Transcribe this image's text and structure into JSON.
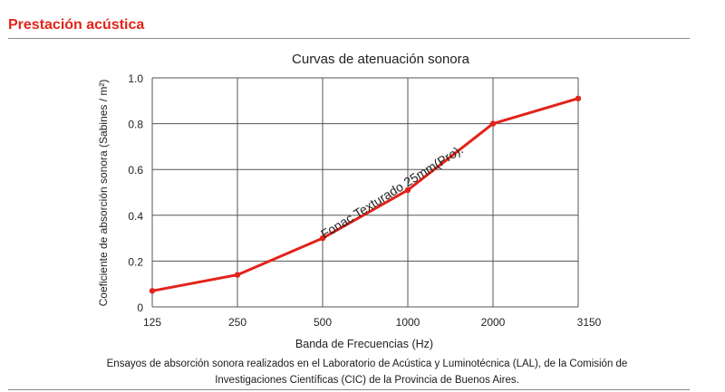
{
  "section": {
    "title": "Prestación acústica"
  },
  "colors": {
    "accent": "#e2231a",
    "series": "#e2231a",
    "grid": "#555555"
  },
  "chart_data": {
    "type": "line",
    "title": "Curvas de atenuación sonora",
    "xlabel": "Banda de Frecuencias (Hz)",
    "ylabel": "Coeficiente de absorción sonora (Sabines / m²)",
    "categories": [
      "125",
      "250",
      "500",
      "1000",
      "2000",
      "3150"
    ],
    "y_ticks": [
      "0",
      "0.2",
      "0.4",
      "0.6",
      "0.8",
      "1.0"
    ],
    "ylim": [
      0,
      1.0
    ],
    "grid": true,
    "series": [
      {
        "name": "Fonac Texturado 25mm(Pro).",
        "values": [
          0.07,
          0.14,
          0.3,
          0.51,
          0.8,
          0.91
        ]
      }
    ]
  },
  "footnote": {
    "line1": "Ensayos de absorción sonora realizados en el Laboratorio de Acústica y Luminotécnica (LAL), de la Comisión de",
    "line2": "Investigaciones Científicas (CIC) de la Provincia de Buenos Aires."
  }
}
